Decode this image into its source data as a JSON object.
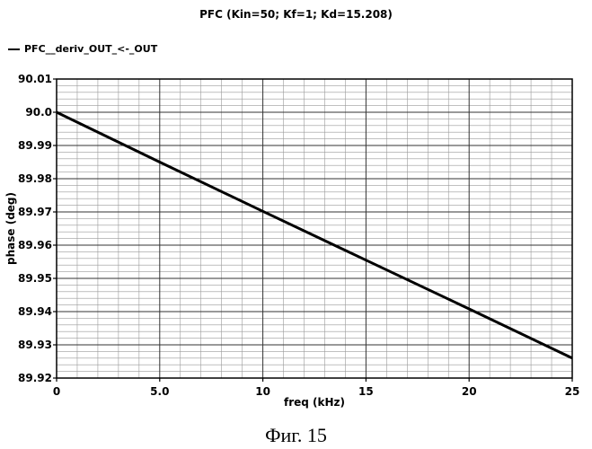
{
  "chart_data": {
    "type": "line",
    "title": "PFC (Kin=50; Kf=1; Kd=15.208)",
    "xlabel": "freq (kHz)",
    "ylabel": "phase (deg)",
    "xlim": [
      0,
      25
    ],
    "ylim": [
      89.92,
      90.01
    ],
    "x_ticks": [
      "0",
      "5.0",
      "10",
      "15",
      "20",
      "25"
    ],
    "y_ticks": [
      "90.01",
      "90.0",
      "89.99",
      "89.98",
      "89.97",
      "89.96",
      "89.95",
      "89.94",
      "89.93",
      "89.92"
    ],
    "grid": true,
    "legend_position": "top-left",
    "series": [
      {
        "name": "PFC__deriv_OUT_<-_OUT",
        "color": "#000000",
        "x": [
          0,
          5,
          10,
          15,
          20,
          25
        ],
        "y": [
          90.0,
          89.985,
          89.9702,
          89.9555,
          89.9408,
          89.926
        ]
      }
    ]
  },
  "caption": "Фиг. 15"
}
